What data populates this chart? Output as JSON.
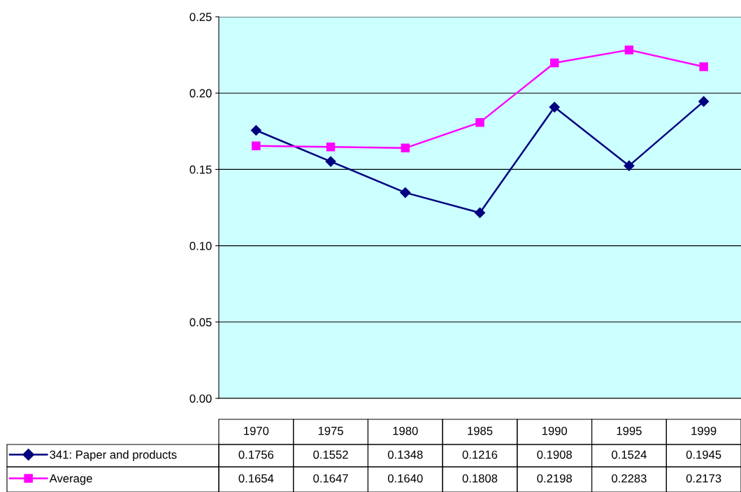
{
  "chart_data": {
    "type": "line",
    "categories": [
      "1970",
      "1975",
      "1980",
      "1985",
      "1990",
      "1995",
      "1999"
    ],
    "series": [
      {
        "name": "341: Paper and products",
        "color": "#000080",
        "marker": "diamond",
        "values": [
          0.1756,
          0.1552,
          0.1348,
          0.1216,
          0.1908,
          0.1524,
          0.1945
        ],
        "value_labels": [
          "0.1756",
          "0.1552",
          "0.1348",
          "0.1216",
          "0.1908",
          "0.1524",
          "0.1945"
        ]
      },
      {
        "name": "Average",
        "color": "#ff00ff",
        "marker": "square",
        "values": [
          0.1654,
          0.1647,
          0.164,
          0.1808,
          0.2198,
          0.2283,
          0.2173
        ],
        "value_labels": [
          "0.1654",
          "0.1647",
          "0.1640",
          "0.1808",
          "0.2198",
          "0.2283",
          "0.2173"
        ]
      }
    ],
    "ylim": [
      0,
      0.25
    ],
    "yticks": [
      {
        "value": 0,
        "label": "0.00"
      },
      {
        "value": 0.05,
        "label": "0.05"
      },
      {
        "value": 0.1,
        "label": "0.10"
      },
      {
        "value": 0.15,
        "label": "0.15"
      },
      {
        "value": 0.2,
        "label": "0.20"
      },
      {
        "value": 0.25,
        "label": "0.25"
      }
    ],
    "grid": "y",
    "legend": "bottom",
    "tick_labels": "y",
    "line_style": "solid"
  }
}
